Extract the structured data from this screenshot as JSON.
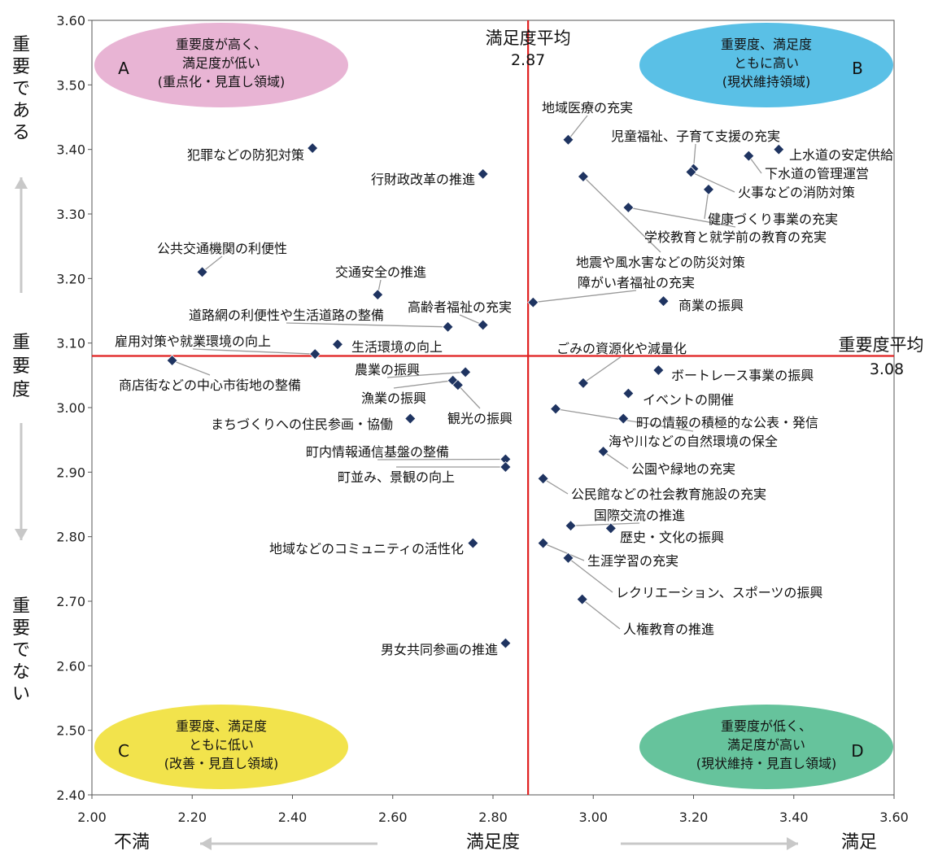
{
  "chart_data": {
    "type": "scatter",
    "xlabel": "満足度",
    "ylabel": "重要度",
    "xlim": [
      2.0,
      3.6
    ],
    "ylim": [
      2.4,
      3.6
    ],
    "x_ticks": [
      "2.00",
      "2.20",
      "2.40",
      "2.60",
      "2.80",
      "3.00",
      "3.20",
      "3.40",
      "3.60"
    ],
    "y_ticks": [
      "2.40",
      "2.50",
      "2.60",
      "2.70",
      "2.80",
      "2.90",
      "3.00",
      "3.10",
      "3.20",
      "3.30",
      "3.40",
      "3.50",
      "3.60"
    ],
    "x_left_label": "不満",
    "x_right_label": "満足",
    "y_top_label": "重要である",
    "y_bottom_label": "重要でない",
    "averages": {
      "satisfaction": {
        "label": "満足度平均",
        "value": 2.87,
        "display": "2.87"
      },
      "importance": {
        "label": "重要度平均",
        "value": 3.08,
        "display": "3.08"
      }
    },
    "quadrants": [
      {
        "letter": "A",
        "lines": [
          "重要度が高く、",
          "満足度が低い",
          "(重点化・見直し領域)"
        ],
        "color": "#e8b4d4"
      },
      {
        "letter": "B",
        "lines": [
          "重要度、満足度",
          "ともに高い",
          "(現状維持領域)"
        ],
        "color": "#5ac0e6"
      },
      {
        "letter": "C",
        "lines": [
          "重要度、満足度",
          "ともに低い",
          "(改善・見直し領域)"
        ],
        "color": "#f2e34c"
      },
      {
        "letter": "D",
        "lines": [
          "重要度が低く、",
          "満足度が高い",
          "(現状維持・見直し領域)"
        ],
        "color": "#66c39c"
      }
    ],
    "points": [
      {
        "label": "地域医療の充実",
        "x": 2.95,
        "y": 3.415
      },
      {
        "label": "児童福祉、子育て支援の充実",
        "x": 3.2,
        "y": 3.37
      },
      {
        "label": "上水道の安定供給",
        "x": 3.37,
        "y": 3.4
      },
      {
        "label": "下水道の管理運営",
        "x": 3.31,
        "y": 3.39
      },
      {
        "label": "火事などの消防対策",
        "x": 3.195,
        "y": 3.365
      },
      {
        "label": "健康づくり事業の充実",
        "x": 3.23,
        "y": 3.338
      },
      {
        "label": "学校教育と就学前の教育の充実",
        "x": 3.07,
        "y": 3.31
      },
      {
        "label": "地震や風水害などの防災対策",
        "x": 2.98,
        "y": 3.358
      },
      {
        "label": "障がい者福祉の充実",
        "x": 2.88,
        "y": 3.163
      },
      {
        "label": "商業の振興",
        "x": 3.14,
        "y": 3.165
      },
      {
        "label": "ごみの資源化や減量化",
        "x": 2.98,
        "y": 3.038
      },
      {
        "label": "ボートレース事業の振興",
        "x": 3.13,
        "y": 3.058
      },
      {
        "label": "イベントの開催",
        "x": 3.07,
        "y": 3.022
      },
      {
        "label": "町の情報の積極的な公表・発信",
        "x": 3.06,
        "y": 2.983
      },
      {
        "label": "海や川などの自然環境の保全",
        "x": 2.925,
        "y": 2.998
      },
      {
        "label": "公園や緑地の充実",
        "x": 3.02,
        "y": 2.932
      },
      {
        "label": "公民館などの社会教育施設の充実",
        "x": 2.9,
        "y": 2.89
      },
      {
        "label": "国際交流の推進",
        "x": 2.955,
        "y": 2.817
      },
      {
        "label": "歴史・文化の振興",
        "x": 3.035,
        "y": 2.813
      },
      {
        "label": "生涯学習の充実",
        "x": 2.9,
        "y": 2.79
      },
      {
        "label": "レクリエーション、スポーツの振興",
        "x": 2.95,
        "y": 2.767
      },
      {
        "label": "人権教育の推進",
        "x": 2.978,
        "y": 2.703
      },
      {
        "label": "犯罪などの防犯対策",
        "x": 2.44,
        "y": 3.402
      },
      {
        "label": "行財政改革の推進",
        "x": 2.78,
        "y": 3.362
      },
      {
        "label": "公共交通機関の利便性",
        "x": 2.22,
        "y": 3.21
      },
      {
        "label": "交通安全の推進",
        "x": 2.57,
        "y": 3.175
      },
      {
        "label": "高齢者福祉の充実",
        "x": 2.78,
        "y": 3.128
      },
      {
        "label": "道路網の利便性や生活道路の整備",
        "x": 2.71,
        "y": 3.125
      },
      {
        "label": "生活環境の向上",
        "x": 2.49,
        "y": 3.098
      },
      {
        "label": "雇用対策や就業環境の向上",
        "x": 2.445,
        "y": 3.083
      },
      {
        "label": "商店街などの中心市街地の整備",
        "x": 2.16,
        "y": 3.073
      },
      {
        "label": "農業の振興",
        "x": 2.745,
        "y": 3.055
      },
      {
        "label": "漁業の振興",
        "x": 2.72,
        "y": 3.042
      },
      {
        "label": "観光の振興",
        "x": 2.73,
        "y": 3.035
      },
      {
        "label": "まちづくりへの住民参画・協働",
        "x": 2.635,
        "y": 2.983
      },
      {
        "label": "町内情報通信基盤の整備",
        "x": 2.825,
        "y": 2.92
      },
      {
        "label": "町並み、景観の向上",
        "x": 2.825,
        "y": 2.908
      },
      {
        "label": "地域などのコミュニティの活性化",
        "x": 2.76,
        "y": 2.79
      },
      {
        "label": "男女共同参画の推進",
        "x": 2.825,
        "y": 2.635
      }
    ],
    "marker_color": "#1f3461",
    "avg_line_color": "#e02020",
    "arrow_color": "#c8c8c8"
  }
}
